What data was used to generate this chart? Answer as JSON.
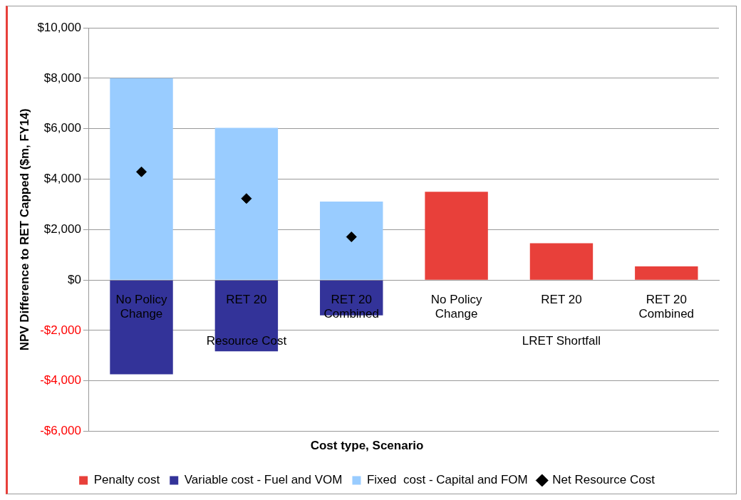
{
  "chart_data": {
    "type": "bar",
    "stacked": true,
    "xlabel": "Cost type, Scenario",
    "ylabel": "NPV Difference to RET Capped ($m, FY14)",
    "categories": [
      "No Policy Change",
      "RET 20",
      "RET 20 Combined",
      "No Policy Change",
      "RET 20",
      "RET 20 Combined"
    ],
    "annotations": [
      "Resource Cost",
      "LRET Shortfall"
    ],
    "series": [
      {
        "name": "Penalty cost",
        "color": "#e8403a",
        "values": [
          null,
          null,
          null,
          3500,
          1460,
          540
        ]
      },
      {
        "name": "Variable cost - Fuel and VOM",
        "color": "#333399",
        "values": [
          -3740,
          -2830,
          -1400,
          null,
          null,
          null
        ]
      },
      {
        "name": "Fixed  cost - Capital and FOM",
        "color": "#99ccff",
        "values": [
          8000,
          6030,
          3110,
          null,
          null,
          null
        ]
      },
      {
        "name": "Net Resource Cost",
        "type": "scatter",
        "marker": "diamond",
        "color": "#000000",
        "values": [
          4290,
          3230,
          1710,
          null,
          null,
          null
        ]
      }
    ],
    "ylim": [
      -6000,
      10000
    ],
    "yticks": [
      {
        "value": -6000,
        "label": "-$6,000"
      },
      {
        "value": -4000,
        "label": "-$4,000"
      },
      {
        "value": -2000,
        "label": "-$2,000"
      },
      {
        "value": 0,
        "label": "$0"
      },
      {
        "value": 2000,
        "label": "$2,000"
      },
      {
        "value": 4000,
        "label": "$4,000"
      },
      {
        "value": 6000,
        "label": "$6,000"
      },
      {
        "value": 8000,
        "label": "$8,000"
      },
      {
        "value": 10000,
        "label": "$10,000"
      }
    ],
    "grid": "y",
    "legend": "bottom"
  }
}
